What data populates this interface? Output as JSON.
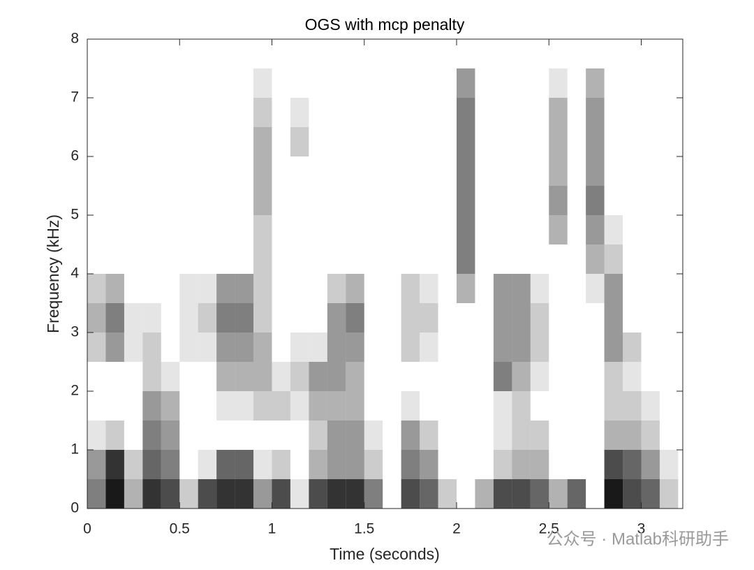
{
  "chart_data": {
    "type": "heatmap",
    "title": "OGS with mcp penalty",
    "xlabel": "Time (seconds)",
    "ylabel": "Frequency (kHz)",
    "watermark": "公众号 · Matlab科研助手",
    "color": "#000000",
    "xlim": [
      0,
      3.225
    ],
    "xticks": [
      0,
      0.5,
      1,
      1.5,
      2,
      2.5,
      3
    ],
    "ylim": [
      0,
      8
    ],
    "yticks": [
      0,
      1,
      2,
      3,
      4,
      5,
      6,
      7,
      8
    ],
    "x": [
      0.05,
      0.15,
      0.25,
      0.35,
      0.45,
      0.55,
      0.65,
      0.75,
      0.85,
      0.95,
      1.05,
      1.15,
      1.25,
      1.35,
      1.45,
      1.55,
      1.65,
      1.75,
      1.85,
      1.95,
      2.05,
      2.15,
      2.25,
      2.35,
      2.45,
      2.55,
      2.65,
      2.75,
      2.85,
      2.95,
      3.05,
      3.15
    ],
    "y": [
      0.25,
      0.75,
      1.25,
      1.75,
      2.25,
      2.75,
      3.25,
      3.75,
      4.25,
      4.75,
      5.25,
      5.75,
      6.25,
      6.75,
      7.25,
      7.75
    ],
    "z": [
      [
        0.5,
        0.4,
        0.1,
        0,
        0,
        0.2,
        0.3,
        0.2,
        0,
        0,
        0,
        0,
        0,
        0,
        0,
        0
      ],
      [
        0.9,
        0.8,
        0.2,
        0,
        0,
        0.4,
        0.5,
        0.3,
        0,
        0,
        0,
        0,
        0,
        0,
        0,
        0
      ],
      [
        0.3,
        0.2,
        0,
        0,
        0,
        0.1,
        0.1,
        0,
        0,
        0,
        0,
        0,
        0,
        0,
        0,
        0
      ],
      [
        0.8,
        0.6,
        0.5,
        0.4,
        0.2,
        0.2,
        0.1,
        0,
        0,
        0,
        0,
        0,
        0,
        0,
        0,
        0
      ],
      [
        0.7,
        0.5,
        0.4,
        0.3,
        0.1,
        0,
        0,
        0,
        0,
        0,
        0,
        0,
        0,
        0,
        0,
        0
      ],
      [
        0.2,
        0,
        0,
        0,
        0,
        0.1,
        0.1,
        0.1,
        0,
        0,
        0,
        0,
        0,
        0,
        0,
        0
      ],
      [
        0.7,
        0.1,
        0,
        0,
        0,
        0.1,
        0.2,
        0.1,
        0,
        0,
        0,
        0,
        0,
        0,
        0,
        0
      ],
      [
        0.8,
        0.6,
        0,
        0.1,
        0.3,
        0.4,
        0.5,
        0.4,
        0,
        0,
        0,
        0,
        0,
        0,
        0,
        0
      ],
      [
        0.8,
        0.6,
        0,
        0.1,
        0.3,
        0.4,
        0.5,
        0.4,
        0,
        0,
        0,
        0,
        0,
        0,
        0,
        0
      ],
      [
        0.4,
        0.1,
        0,
        0.2,
        0.3,
        0.3,
        0.2,
        0.2,
        0.2,
        0.2,
        0.3,
        0.3,
        0.3,
        0.2,
        0.1,
        0
      ],
      [
        0.7,
        0.2,
        0,
        0.2,
        0.1,
        0,
        0,
        0,
        0,
        0,
        0,
        0,
        0,
        0,
        0,
        0
      ],
      [
        0.1,
        0,
        0,
        0.1,
        0.2,
        0.1,
        0,
        0,
        0,
        0,
        0,
        0,
        0.2,
        0.1,
        0,
        0
      ],
      [
        0.7,
        0.3,
        0.2,
        0.3,
        0.4,
        0.1,
        0,
        0,
        0,
        0,
        0,
        0,
        0,
        0,
        0,
        0
      ],
      [
        0.8,
        0.4,
        0.4,
        0.3,
        0.4,
        0.4,
        0.4,
        0.2,
        0,
        0,
        0,
        0,
        0,
        0,
        0,
        0
      ],
      [
        0.8,
        0.4,
        0.4,
        0.3,
        0.3,
        0.4,
        0.5,
        0.3,
        0,
        0,
        0,
        0,
        0,
        0,
        0,
        0
      ],
      [
        0.5,
        0.2,
        0.1,
        0,
        0,
        0,
        0,
        0,
        0,
        0,
        0,
        0,
        0,
        0,
        0,
        0
      ],
      [
        0,
        0,
        0,
        0,
        0,
        0,
        0,
        0,
        0,
        0,
        0,
        0,
        0,
        0,
        0,
        0
      ],
      [
        0.7,
        0.5,
        0.4,
        0.1,
        0,
        0.2,
        0.2,
        0.2,
        0,
        0,
        0,
        0,
        0,
        0,
        0,
        0
      ],
      [
        0.6,
        0.4,
        0.2,
        0,
        0,
        0.1,
        0.2,
        0.1,
        0,
        0,
        0,
        0,
        0,
        0,
        0,
        0
      ],
      [
        0.2,
        0,
        0,
        0,
        0,
        0,
        0,
        0,
        0,
        0,
        0,
        0,
        0,
        0,
        0,
        0
      ],
      [
        0,
        0,
        0,
        0,
        0,
        0,
        0,
        0.3,
        0.5,
        0.5,
        0.5,
        0.5,
        0.5,
        0.5,
        0.4,
        0
      ],
      [
        0.3,
        0,
        0,
        0,
        0,
        0,
        0,
        0,
        0,
        0,
        0,
        0,
        0,
        0,
        0,
        0
      ],
      [
        0.7,
        0.2,
        0.1,
        0.1,
        0.5,
        0.4,
        0.4,
        0.4,
        0,
        0,
        0,
        0,
        0,
        0,
        0,
        0
      ],
      [
        0.7,
        0.3,
        0.2,
        0.2,
        0.3,
        0.4,
        0.4,
        0.4,
        0,
        0,
        0,
        0,
        0,
        0,
        0,
        0
      ],
      [
        0.6,
        0.3,
        0.2,
        0,
        0.1,
        0.2,
        0.2,
        0.1,
        0,
        0,
        0,
        0,
        0,
        0,
        0,
        0
      ],
      [
        0.3,
        0,
        0,
        0,
        0,
        0,
        0,
        0,
        0,
        0.3,
        0.4,
        0.3,
        0.3,
        0.3,
        0.1,
        0
      ],
      [
        0.6,
        0,
        0,
        0,
        0,
        0,
        0,
        0,
        0,
        0,
        0,
        0,
        0,
        0,
        0,
        0
      ],
      [
        0,
        0,
        0,
        0,
        0,
        0,
        0,
        0.1,
        0.3,
        0.4,
        0.5,
        0.4,
        0.4,
        0.4,
        0.3,
        0
      ],
      [
        0.9,
        0.7,
        0.3,
        0.2,
        0.2,
        0.4,
        0.4,
        0.4,
        0.2,
        0.1,
        0,
        0,
        0,
        0,
        0,
        0
      ],
      [
        0.7,
        0.6,
        0.3,
        0.2,
        0.1,
        0.2,
        0,
        0,
        0,
        0,
        0,
        0,
        0,
        0,
        0,
        0
      ],
      [
        0.6,
        0.4,
        0.2,
        0.1,
        0,
        0,
        0,
        0,
        0,
        0,
        0,
        0,
        0,
        0,
        0,
        0
      ],
      [
        0.2,
        0.1,
        0,
        0,
        0,
        0,
        0,
        0,
        0,
        0,
        0,
        0,
        0,
        0,
        0,
        0
      ]
    ]
  }
}
